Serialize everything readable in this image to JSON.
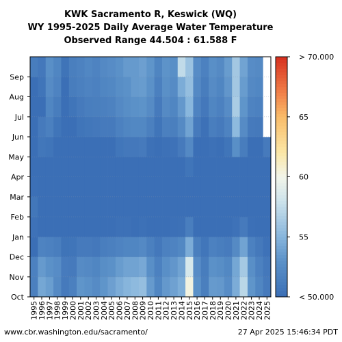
{
  "figure": {
    "title_lines": [
      "KWK Sacramento R, Keswick (WQ)",
      "WY 1995-2025 Daily Average Water Temperature",
      "Observed Range 44.504 : 61.588 F"
    ],
    "footer_left": "www.cbr.washington.edu/sacramento/",
    "footer_right": "27 Apr 2025 15:46:34 PDT"
  },
  "chart_data": {
    "type": "heatmap",
    "title": "KWK Sacramento R, Keswick (WQ)\nWY 1995-2025 Daily Average Water Temperature\nObserved Range 44.504 : 61.588 F",
    "x_labels": [
      "1995",
      "1996",
      "1997",
      "1998",
      "1999",
      "2000",
      "2001",
      "2002",
      "2003",
      "2004",
      "2005",
      "2006",
      "2007",
      "2008",
      "2009",
      "2010",
      "2011",
      "2012",
      "2013",
      "2014",
      "2015",
      "2016",
      "2017",
      "2018",
      "2019",
      "2020",
      "2021",
      "2022",
      "2023",
      "2024",
      "2025"
    ],
    "y_labels": [
      "Oct",
      "Nov",
      "Dec",
      "Jan",
      "Feb",
      "Mar",
      "Apr",
      "May",
      "Jun",
      "Jul",
      "Aug",
      "Sep"
    ],
    "colorbar_ticks": [
      {
        "value": 50,
        "label": "< 50.000"
      },
      {
        "value": 55,
        "label": "55"
      },
      {
        "value": 60,
        "label": "60"
      },
      {
        "value": 65,
        "label": "65"
      },
      {
        "value": 70,
        "label": "> 70.000"
      }
    ],
    "color_range": [
      50,
      70
    ],
    "observed_min": 44.504,
    "observed_max": 61.588,
    "colors": {
      "low": "#3b6fb6",
      "mid_low": "#87b5dc",
      "mid": "#f2f5ea",
      "mid_high": "#f9d37a",
      "high": "#d7301f",
      "missing": "#ffffff"
    },
    "monthly_mean_temperature": [
      [
        51.5,
        51.6,
        49.6,
        50.3,
        50.7,
        50.1,
        49.5,
        49.3,
        49.7,
        49.6,
        49.8,
        51.2
      ],
      [
        54.2,
        53.5,
        51.8,
        50.0,
        48.5,
        48.8,
        49.5,
        50.7,
        51.0,
        50.0,
        50.5,
        50.8
      ],
      [
        53.7,
        53.0,
        51.6,
        50.0,
        48.5,
        48.8,
        49.5,
        50.5,
        51.5,
        52.0,
        52.5,
        52.8
      ],
      [
        52.4,
        52.6,
        51.3,
        50.0,
        48.5,
        48.5,
        48.8,
        49.5,
        50.5,
        51.2,
        51.8,
        52.0
      ],
      [
        51.0,
        51.1,
        50.4,
        49.8,
        48.5,
        48.3,
        48.5,
        49.0,
        49.7,
        50.0,
        50.0,
        50.4
      ],
      [
        51.5,
        51.0,
        50.5,
        49.6,
        48.3,
        48.0,
        48.2,
        49.2,
        49.8,
        50.5,
        51.2,
        51.4
      ],
      [
        53.2,
        52.5,
        51.0,
        49.8,
        48.5,
        48.5,
        48.8,
        49.8,
        50.5,
        51.0,
        51.5,
        51.7
      ],
      [
        53.0,
        52.3,
        51.0,
        49.8,
        48.6,
        48.3,
        48.6,
        49.8,
        50.7,
        51.3,
        51.8,
        52.1
      ],
      [
        52.5,
        52.0,
        50.8,
        49.8,
        48.5,
        48.4,
        48.7,
        49.9,
        50.8,
        51.4,
        51.6,
        51.8
      ],
      [
        53.2,
        52.7,
        51.3,
        50.0,
        48.7,
        48.6,
        49.0,
        50.0,
        51.0,
        51.5,
        52.0,
        52.3
      ],
      [
        53.8,
        53.0,
        51.5,
        50.0,
        48.8,
        48.7,
        49.0,
        50.0,
        51.0,
        51.7,
        52.2,
        52.6
      ],
      [
        54.5,
        53.6,
        51.8,
        50.2,
        49.0,
        48.9,
        49.3,
        50.6,
        51.6,
        52.3,
        52.7,
        53.0
      ],
      [
        55.0,
        54.0,
        52.0,
        50.2,
        49.0,
        48.9,
        49.4,
        50.8,
        52.0,
        52.7,
        53.0,
        53.5
      ],
      [
        55.3,
        54.0,
        52.0,
        50.0,
        49.0,
        48.9,
        49.4,
        50.8,
        52.2,
        53.0,
        53.5,
        53.5
      ],
      [
        55.6,
        54.3,
        52.3,
        50.2,
        49.1,
        49.0,
        49.6,
        51.0,
        52.2,
        53.1,
        53.6,
        53.8
      ],
      [
        53.5,
        52.8,
        51.5,
        50.0,
        48.8,
        48.6,
        49.0,
        50.2,
        51.5,
        52.5,
        53.0,
        53.2
      ],
      [
        52.0,
        51.6,
        50.8,
        49.8,
        48.6,
        48.4,
        48.6,
        49.5,
        50.5,
        51.0,
        51.5,
        51.9
      ],
      [
        53.4,
        52.8,
        51.6,
        50.0,
        48.9,
        48.6,
        49.0,
        50.2,
        51.5,
        52.4,
        52.9,
        53.1
      ],
      [
        53.9,
        53.3,
        51.8,
        50.1,
        49.0,
        48.8,
        49.2,
        50.3,
        51.4,
        52.0,
        52.5,
        52.8
      ],
      [
        54.6,
        54.0,
        52.2,
        50.2,
        49.1,
        49.0,
        49.6,
        51.0,
        52.4,
        53.4,
        54.5,
        57.5
      ],
      [
        60.3,
        58.5,
        54.5,
        51.3,
        49.9,
        49.8,
        50.5,
        52.3,
        54.0,
        55.1,
        55.6,
        55.9
      ],
      [
        53.0,
        52.6,
        51.4,
        50.0,
        48.8,
        48.5,
        48.8,
        49.8,
        51.0,
        51.8,
        52.3,
        52.6
      ],
      [
        51.4,
        51.2,
        50.6,
        49.9,
        48.5,
        48.3,
        48.5,
        49.3,
        50.2,
        50.8,
        51.2,
        51.6
      ],
      [
        53.5,
        53.0,
        51.6,
        50.0,
        48.8,
        48.6,
        49.0,
        50.2,
        51.3,
        52.0,
        52.5,
        52.8
      ],
      [
        53.4,
        52.7,
        51.3,
        49.9,
        48.8,
        48.6,
        49.0,
        50.0,
        51.0,
        51.6,
        52.0,
        52.4
      ],
      [
        52.6,
        52.2,
        51.1,
        50.0,
        48.8,
        48.6,
        49.1,
        50.5,
        51.8,
        52.6,
        53.3,
        53.6
      ],
      [
        54.5,
        54.2,
        52.4,
        50.3,
        49.0,
        49.0,
        50.0,
        52.8,
        55.3,
        56.5,
        56.2,
        56.2
      ],
      [
        57.2,
        56.3,
        54.0,
        51.0,
        49.5,
        49.3,
        49.8,
        51.2,
        52.5,
        53.2,
        53.6,
        54.0
      ],
      [
        53.2,
        52.8,
        51.6,
        50.1,
        48.9,
        48.7,
        49.0,
        50.0,
        51.0,
        51.8,
        52.3,
        52.6
      ],
      [
        52.0,
        51.6,
        50.9,
        49.9,
        48.8,
        48.5,
        48.8,
        49.8,
        50.9,
        51.6,
        52.1,
        52.4
      ],
      [
        51.0,
        50.8,
        50.3,
        49.8,
        48.7,
        48.5,
        49.0,
        51.0,
        null,
        null,
        null,
        null
      ]
    ]
  }
}
